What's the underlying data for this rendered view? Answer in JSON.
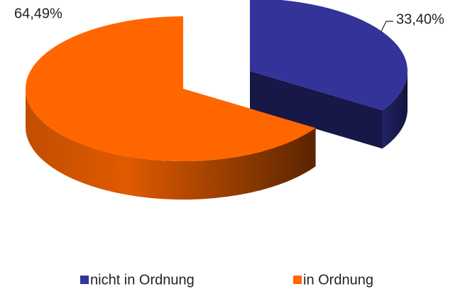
{
  "chart_data": {
    "type": "pie3d",
    "categories": [
      "nicht in Ordnung",
      "in Ordnung"
    ],
    "values": [
      33.4,
      64.49
    ],
    "value_labels": [
      "33,40%",
      "64,49%"
    ],
    "colors": [
      "#333399",
      "#ff6600"
    ],
    "legend": "bottom"
  }
}
